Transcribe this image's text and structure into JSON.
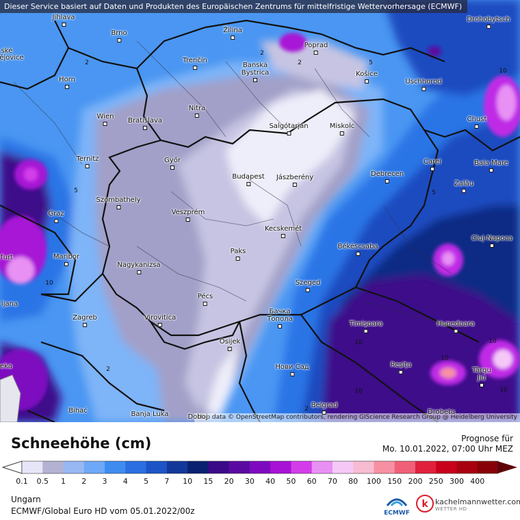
{
  "banner": "Dieser Service basiert auf Daten und Produkten des Europäischen Zentrums für mittelfristige Wettervorhersage (ECMWF)",
  "attribution": "Map data © OpenStreetMap contributors, rendering GIScience Research Group @ Heidelberg University",
  "cities": [
    {
      "name": "Jihlava"
    },
    {
      "name": "Brno"
    },
    {
      "name": "Žilina"
    },
    {
      "name": "Poprad"
    },
    {
      "name": "Drohobytsch"
    },
    {
      "name": "ské"
    },
    {
      "name": "ějovice"
    },
    {
      "name": "Trenčín"
    },
    {
      "name": "Banská Bystrica"
    },
    {
      "name": "Horn"
    },
    {
      "name": "Košice"
    },
    {
      "name": "Uschhorod"
    },
    {
      "name": "Nitra"
    },
    {
      "name": "Wien"
    },
    {
      "name": "Bratislava"
    },
    {
      "name": "Salgótarján"
    },
    {
      "name": "Miskolc"
    },
    {
      "name": "Chust"
    },
    {
      "name": "Ternitz"
    },
    {
      "name": "Győr"
    },
    {
      "name": "Carei"
    },
    {
      "name": "Baia Mare"
    },
    {
      "name": "Budapest"
    },
    {
      "name": "Jászberény"
    },
    {
      "name": "Debrecen"
    },
    {
      "name": "Szombathely"
    },
    {
      "name": "Zalău"
    },
    {
      "name": "Graz"
    },
    {
      "name": "Veszprém"
    },
    {
      "name": "Kecskemét"
    },
    {
      "name": "Cluj-Napoca"
    },
    {
      "name": "furt"
    },
    {
      "name": "Maribor"
    },
    {
      "name": "Békéscsaba"
    },
    {
      "name": "Paks"
    },
    {
      "name": "Nagykanizsa"
    },
    {
      "name": "Szeged"
    },
    {
      "name": "ljana"
    },
    {
      "name": "Pécs"
    },
    {
      "name": "Бачка Топола"
    },
    {
      "name": "Zagreb"
    },
    {
      "name": "Virovitica"
    },
    {
      "name": "Timișoara"
    },
    {
      "name": "Hunedoara"
    },
    {
      "name": "Osijek"
    },
    {
      "name": "Нови Сад"
    },
    {
      "name": "Reșița"
    },
    {
      "name": "Târgu Jiu"
    },
    {
      "name": "eka"
    },
    {
      "name": "Bihać"
    },
    {
      "name": "Banja Luka"
    },
    {
      "name": "Doboj"
    },
    {
      "name": "Belgrad"
    },
    {
      "name": "Drobeta"
    }
  ],
  "contour_values": [
    "2",
    "2",
    "2",
    "2",
    "5",
    "5",
    "5",
    "10",
    "10",
    "10",
    "10",
    "10",
    "10",
    "10",
    "2"
  ],
  "footer": {
    "title": "Schneehöhe (cm)",
    "forecast_label": "Prognose für",
    "forecast_date": "Mo. 10.01.2022, 07:00 Uhr MEZ",
    "region": "Ungarn",
    "model": "ECMWF/Global Euro HD vom  05.01.2022/00z",
    "ecmwf_label": "ECMWF",
    "brand_name": "kachelmannwetter.com",
    "brand_sub": "WETTER HD"
  },
  "legend": {
    "labels": [
      "0.1",
      "0.5",
      "1",
      "2",
      "3",
      "4",
      "5",
      "7",
      "10",
      "15",
      "20",
      "30",
      "40",
      "50",
      "60",
      "70",
      "80",
      "100",
      "150",
      "200",
      "250",
      "300",
      "400"
    ],
    "colors": [
      "#e6e6f8",
      "#b4b2d2",
      "#98b8f4",
      "#6ea8f8",
      "#3e8cf0",
      "#2a6ee2",
      "#1c54c6",
      "#12389a",
      "#0a2070",
      "#3a0a88",
      "#5a0aa0",
      "#7e0ac0",
      "#a812d6",
      "#d43cea",
      "#e890f4",
      "#f6c8f8",
      "#f8bcd2",
      "#f890a4",
      "#f06078",
      "#e0203c",
      "#c8001c",
      "#a8000e",
      "#880008",
      "#600004"
    ]
  },
  "colors": {
    "lightest": "#eeeefa",
    "lavender": "#c6c4e2",
    "grey_blue": "#a2a0c8",
    "light_blue": "#7eb4f8",
    "mid_blue": "#4a96f2",
    "blue": "#2c74e6",
    "deep_blue": "#1a4cc0",
    "navy": "#0c2a84",
    "purple": "#3c0c8a",
    "magenta": "#c02ae6"
  }
}
